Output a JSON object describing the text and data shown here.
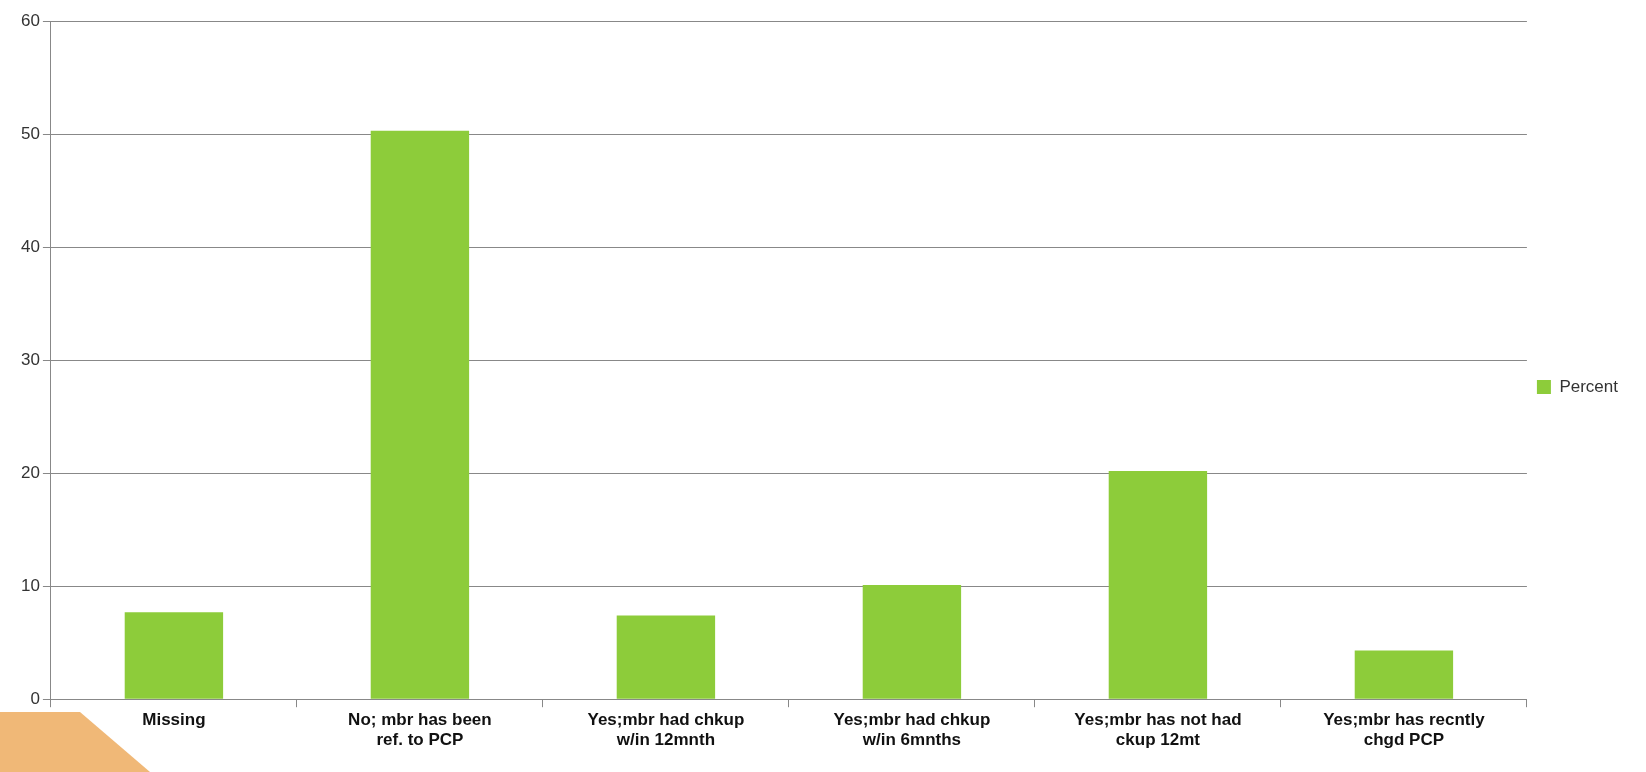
{
  "chart_data": {
    "type": "bar",
    "categories": [
      "Missing",
      "No; mbr has been ref. to PCP",
      "Yes;mbr had chkup w/in 12mnth",
      "Yes;mbr had chkup w/in 6mnths",
      "Yes;mbr has not had ckup 12mt",
      "Yes;mbr has recntly chgd PCP"
    ],
    "series": [
      {
        "name": "Percent",
        "color": "#8dcc3a",
        "values": [
          7.7,
          50.3,
          7.4,
          10.1,
          20.2,
          4.3
        ]
      }
    ],
    "ylim": [
      0,
      60
    ],
    "yticks": [
      0,
      10,
      20,
      30,
      40,
      50,
      60
    ],
    "grid": "y",
    "legend": "right"
  }
}
